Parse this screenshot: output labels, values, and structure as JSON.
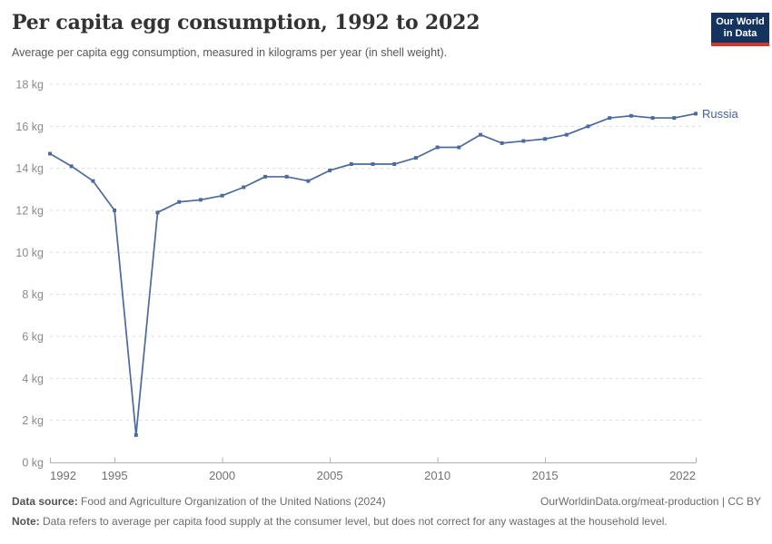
{
  "header": {
    "title": "Per capita egg consumption, 1992 to 2022",
    "subtitle": "Average per capita egg consumption, measured in kilograms per year (in shell weight)."
  },
  "logo": {
    "line1": "Our World",
    "line2": "in Data"
  },
  "footer": {
    "source_label": "Data source:",
    "source_text": "Food and Agriculture Organization of the United Nations (2024)",
    "link_text": "OurWorldinData.org/meat-production | CC BY",
    "note_label": "Note:",
    "note_text": "Data refers to average per capita food supply at the consumer level, but does not correct for any wastages at the household level."
  },
  "colors": {
    "line": "#4c6a9c",
    "series_label": "#44619c",
    "grid": "#dcdcdc",
    "axis": "#b0b0b0",
    "y_label": "#8a8a8a",
    "x_label": "#707070",
    "logo_bg": "#15335f",
    "logo_bar": "#d2362a"
  },
  "chart_data": {
    "type": "line",
    "title": "Per capita egg consumption, 1992 to 2022",
    "ylabel": "",
    "xlabel": "",
    "y_unit": "kg",
    "ylim": [
      0,
      18
    ],
    "ytick_step": 2,
    "xlim": [
      1992,
      2022
    ],
    "xticks": [
      1992,
      1995,
      2000,
      2005,
      2010,
      2015,
      2022
    ],
    "grid": "horizontal-dashed",
    "legend_position": "end-of-line",
    "series": [
      {
        "name": "Russia",
        "x": [
          1992,
          1993,
          1994,
          1995,
          1996,
          1997,
          1998,
          1999,
          2000,
          2001,
          2002,
          2003,
          2004,
          2005,
          2006,
          2007,
          2008,
          2009,
          2010,
          2011,
          2012,
          2013,
          2014,
          2015,
          2016,
          2017,
          2018,
          2019,
          2020,
          2021,
          2022
        ],
        "values": [
          14.7,
          14.1,
          13.4,
          12.0,
          1.3,
          11.9,
          12.4,
          12.5,
          12.7,
          13.1,
          13.6,
          13.6,
          13.4,
          13.9,
          14.2,
          14.2,
          14.2,
          14.5,
          15.0,
          15.0,
          15.6,
          15.2,
          15.3,
          15.4,
          15.6,
          16.0,
          16.4,
          16.5,
          16.4,
          16.4,
          16.6
        ]
      }
    ]
  }
}
